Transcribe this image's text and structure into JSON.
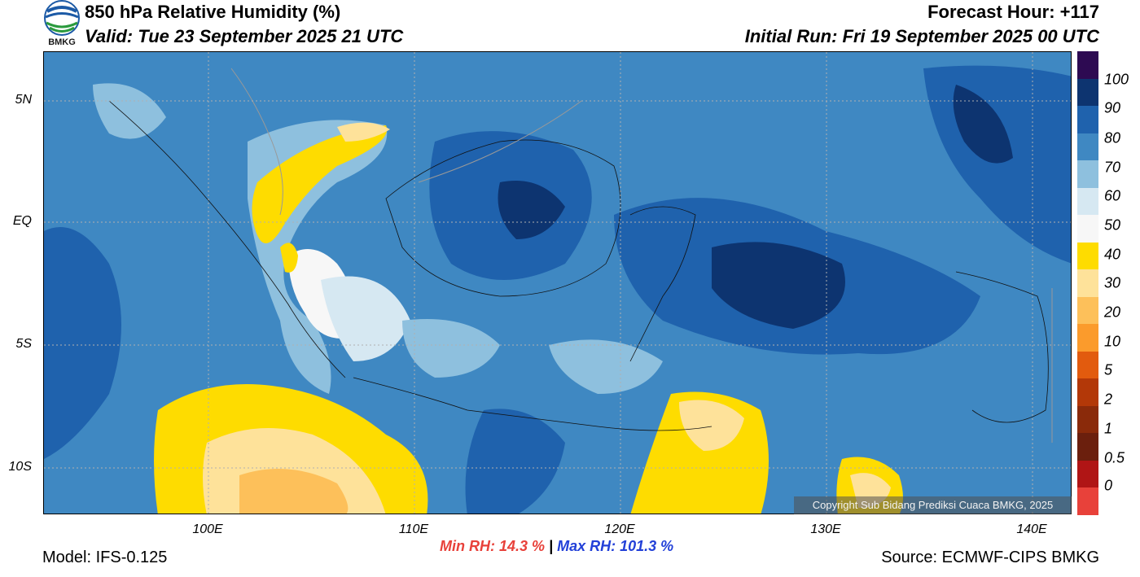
{
  "header": {
    "title": "850 hPa Relative Humidity (%)",
    "valid": "Valid: Tue 23 September 2025 21 UTC",
    "forecast_hour": "Forecast Hour: +117",
    "initial_run": "Initial Run: Fri 19 September 2025 00 UTC",
    "logo_text": "BMKG"
  },
  "map": {
    "lat_labels": [
      "5N",
      "EQ",
      "5S",
      "10S"
    ],
    "lon_labels": [
      "100E",
      "110E",
      "120E",
      "130E",
      "140E"
    ],
    "copyright": "Copyright Sub Bidang Prediksi Cuaca BMKG, 2025"
  },
  "colorbar": {
    "labels": [
      "100",
      "90",
      "80",
      "70",
      "60",
      "50",
      "40",
      "30",
      "20",
      "10",
      "5",
      "2",
      "1",
      "0.5",
      "0"
    ],
    "colors": [
      "#2d0a52",
      "#0d3470",
      "#1f62ad",
      "#3f88c2",
      "#8ec0de",
      "#d6e8f2",
      "#f7f7f7",
      "#fedc00",
      "#fee29a",
      "#fdc05a",
      "#fb9b2c",
      "#e25b0e",
      "#b33808",
      "#8a2a0a",
      "#6b1f0d",
      "#b01515",
      "#e8413a"
    ]
  },
  "footer": {
    "min_rh": "Min RH:  14.3 %",
    "separator": "|",
    "max_rh": "Max RH: 101.3 %",
    "model": "Model: IFS-0.125",
    "source": "Source: ECMWF-CIPS BMKG"
  }
}
